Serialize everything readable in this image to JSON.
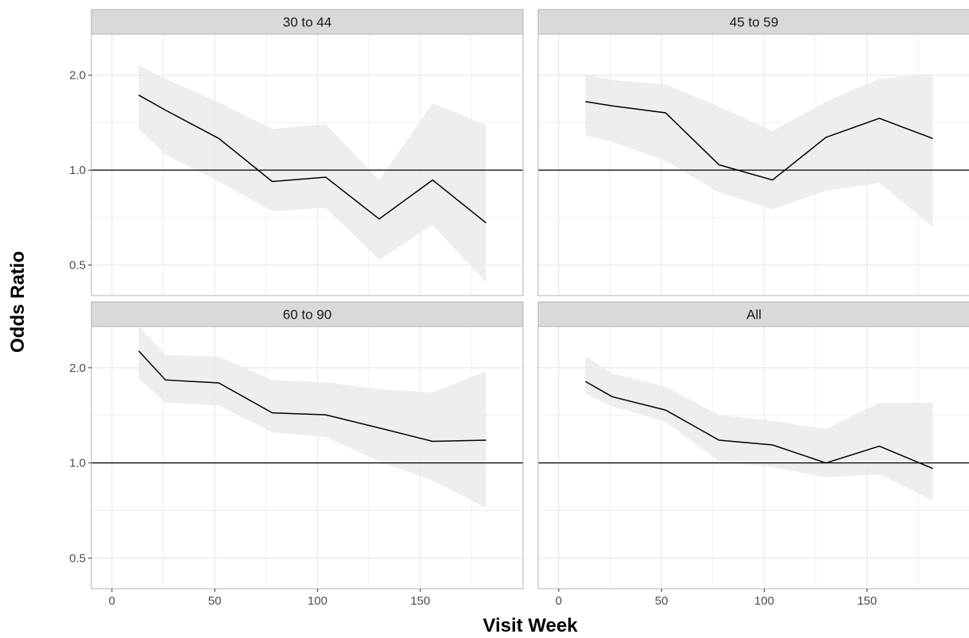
{
  "chart_data": {
    "type": "line",
    "ylabel": "Odds Ratio",
    "xlabel": "Visit Week",
    "y_scale": "log",
    "reference_line": 1.0,
    "x_ticks": [
      0,
      50,
      100,
      150
    ],
    "y_ticks": [
      0.5,
      1.0,
      2.0
    ],
    "x_tick_labels": [
      "0",
      "50",
      "100",
      "150"
    ],
    "y_tick_labels": [
      "0.5",
      "1.0",
      "2.0"
    ],
    "xlim": [
      -10,
      200
    ],
    "ylim": [
      0.4,
      2.7
    ],
    "grid": true,
    "colors": {
      "line": "#000000",
      "ribbon": "#ebebeb",
      "strip_bg": "#d9d9d9",
      "grid": "#ebebeb",
      "panel_border": "#b3b3b3"
    },
    "panels": [
      {
        "label": "30 to 44",
        "x": [
          13,
          26,
          52,
          78,
          104,
          130,
          156,
          182
        ],
        "y": [
          1.73,
          1.55,
          1.26,
          0.92,
          0.95,
          0.7,
          0.93,
          0.68
        ],
        "lower": [
          1.35,
          1.12,
          0.92,
          0.74,
          0.76,
          0.52,
          0.67,
          0.44
        ],
        "upper": [
          2.15,
          1.95,
          1.64,
          1.35,
          1.4,
          0.93,
          1.63,
          1.39
        ]
      },
      {
        "label": "45 to 59",
        "x": [
          13,
          26,
          52,
          78,
          104,
          130,
          156,
          182
        ],
        "y": [
          1.65,
          1.6,
          1.52,
          1.04,
          0.93,
          1.27,
          1.46,
          1.26
        ],
        "lower": [
          1.29,
          1.23,
          1.07,
          0.85,
          0.75,
          0.86,
          0.91,
          0.66
        ],
        "upper": [
          2.02,
          1.93,
          1.87,
          1.59,
          1.33,
          1.65,
          1.95,
          2.02
        ]
      },
      {
        "label": "60 to 90",
        "x": [
          13,
          26,
          52,
          78,
          104,
          130,
          156,
          182
        ],
        "y": [
          2.26,
          1.83,
          1.79,
          1.44,
          1.42,
          1.29,
          1.17,
          1.18
        ],
        "lower": [
          1.85,
          1.55,
          1.52,
          1.25,
          1.21,
          1.01,
          0.88,
          0.72
        ],
        "upper": [
          2.7,
          2.2,
          2.17,
          1.83,
          1.8,
          1.71,
          1.67,
          1.95
        ]
      },
      {
        "label": "All",
        "x": [
          13,
          26,
          52,
          78,
          104,
          130,
          156,
          182
        ],
        "y": [
          1.81,
          1.62,
          1.47,
          1.18,
          1.14,
          1.0,
          1.13,
          0.96
        ],
        "lower": [
          1.65,
          1.51,
          1.35,
          1.01,
          0.97,
          0.9,
          0.92,
          0.76
        ],
        "upper": [
          2.17,
          1.92,
          1.74,
          1.42,
          1.36,
          1.28,
          1.55,
          1.55
        ]
      }
    ]
  }
}
